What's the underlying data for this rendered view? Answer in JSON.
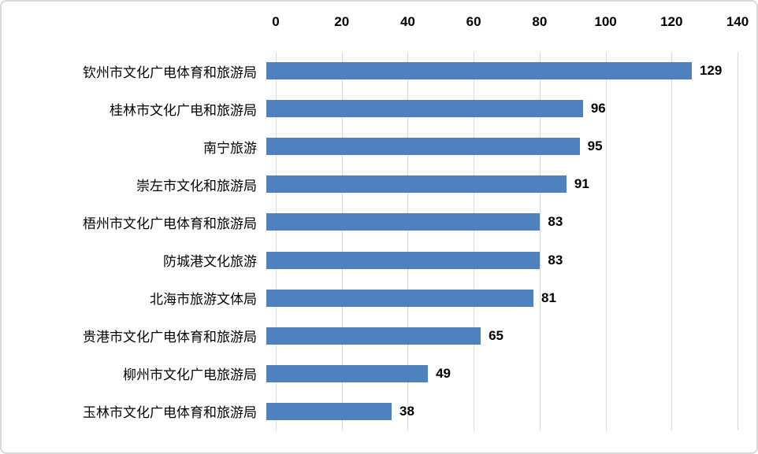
{
  "chart_data": {
    "type": "bar",
    "orientation": "horizontal",
    "title": "",
    "xlabel": "",
    "ylabel": "",
    "categories": [
      "钦州市文化广电体育和旅游局",
      "桂林市文化广电和旅游局",
      "南宁旅游",
      "崇左市文化和旅游局",
      "梧州市文化广电体育和旅游局",
      "防城港文化旅游",
      "北海市旅游文体局",
      "贵港市文化广电体育和旅游局",
      "柳州市文化广电旅游局",
      "玉林市文化广电体育和旅游局"
    ],
    "values": [
      129,
      96,
      95,
      91,
      83,
      83,
      81,
      65,
      49,
      38
    ],
    "xlim": [
      0,
      140
    ],
    "xticks": [
      0,
      20,
      40,
      60,
      80,
      100,
      120,
      140
    ],
    "axis_position": "top",
    "grid": true,
    "data_labels": true,
    "legend": false,
    "bar_color": "#4e81bd",
    "gridline_color": "#d9d9d9",
    "text_color": "#000000",
    "border_color": "#d9d9d9"
  }
}
